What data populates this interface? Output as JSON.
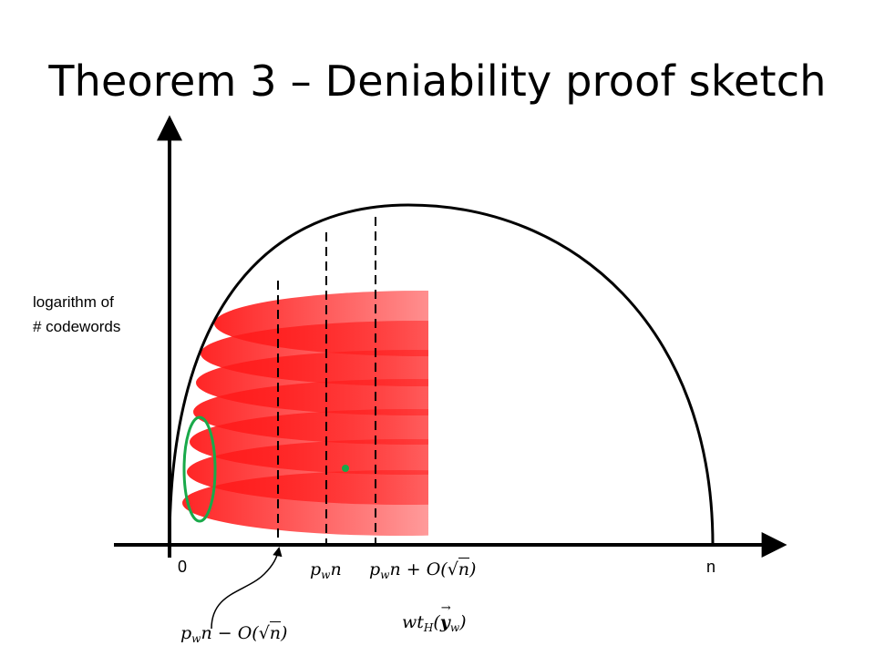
{
  "title": "Theorem 3 – Deniability proof sketch",
  "y_axis_label_lines": [
    "logarithm of",
    "# codewords"
  ],
  "x_ticks": {
    "zero": "0",
    "end": "n"
  },
  "labels": {
    "pn": {
      "p": "p",
      "sub": "w",
      "rest": "n"
    },
    "pn_plus": {
      "p": "p",
      "sub": "w",
      "mid": "n + O(",
      "rad": "n",
      "close": ")"
    },
    "pn_minus": {
      "p": "p",
      "sub": "w",
      "mid": "n − O(",
      "rad": "n",
      "close": ")"
    },
    "weight": {
      "wt": "wt",
      "sub": "H",
      "open": "(",
      "y": "y",
      "arrow": "→",
      "ysub": "w",
      "close": ")"
    }
  },
  "colors": {
    "axis": "#000000",
    "curve": "#000000",
    "red_fill": "#ff1a1a",
    "green_ellipse": "#19a94a",
    "green_dot": "#19a94a"
  }
}
